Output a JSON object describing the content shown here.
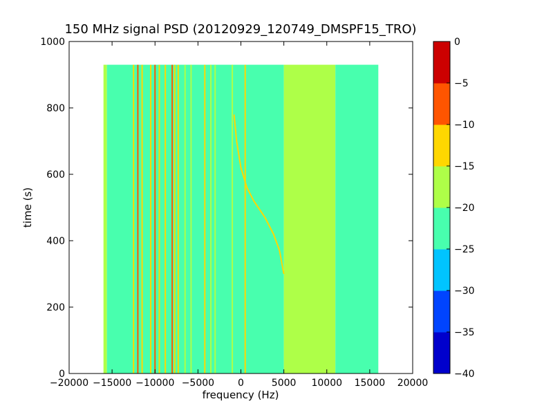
{
  "chart_data": {
    "type": "heatmap",
    "title": "150 MHz signal PSD (20120929_120749_DMSPF15_TRO)",
    "xlabel": "frequency (Hz)",
    "ylabel": "time (s)",
    "xlim": [
      -20000,
      20000
    ],
    "ylim": [
      0,
      1000
    ],
    "xticks": [
      -20000,
      -15000,
      -10000,
      -5000,
      0,
      5000,
      10000,
      15000,
      20000
    ],
    "yticks": [
      0,
      200,
      400,
      600,
      800,
      1000
    ],
    "data_extent": {
      "x": [
        -16000,
        16000
      ],
      "y": [
        0,
        930
      ]
    },
    "grid": false,
    "colorbar": {
      "levels": [
        -40,
        -35,
        -30,
        -25,
        -20,
        -15,
        -10,
        -5,
        0
      ],
      "tick_labels": [
        "−40",
        "−35",
        "−30",
        "−25",
        "−20",
        "−15",
        "−10",
        "−5",
        "0"
      ],
      "colors": [
        "#0000cc",
        "#0044ff",
        "#00c4ff",
        "#48ffae",
        "#aeff48",
        "#ffd700",
        "#ff5500",
        "#cc0000"
      ]
    },
    "regions": [
      {
        "x": [
          -16000,
          -15600
        ],
        "level": -17.5
      },
      {
        "x": [
          -15600,
          5000
        ],
        "level": -22.5
      },
      {
        "x": [
          5000,
          11000
        ],
        "level": -17.5
      },
      {
        "x": [
          11000,
          16000
        ],
        "level": -22.5
      }
    ],
    "vertical_lines": [
      {
        "x": -12500,
        "level": -12.5
      },
      {
        "x": -12000,
        "level": -7.5
      },
      {
        "x": -11500,
        "level": -12.5
      },
      {
        "x": -10500,
        "level": -12.5
      },
      {
        "x": -10000,
        "level": -7.5
      },
      {
        "x": -9500,
        "level": -12.5
      },
      {
        "x": -8800,
        "level": -12.5
      },
      {
        "x": -8000,
        "level": -7.5
      },
      {
        "x": -7700,
        "level": -12.5
      },
      {
        "x": -7300,
        "level": -12.5
      },
      {
        "x": -6500,
        "level": -17.5
      },
      {
        "x": -5800,
        "level": -17.5
      },
      {
        "x": -4200,
        "level": -12.5
      },
      {
        "x": -3500,
        "level": -17.5
      },
      {
        "x": -3000,
        "level": -17.5
      },
      {
        "x": -1000,
        "level": -17.5
      },
      {
        "x": 500,
        "level": -12.5
      }
    ],
    "drift_trace": {
      "level": -12.5,
      "points": [
        {
          "x": 5000,
          "y": 300
        },
        {
          "x": 4500,
          "y": 370
        },
        {
          "x": 3800,
          "y": 420
        },
        {
          "x": 2800,
          "y": 470
        },
        {
          "x": 1500,
          "y": 520
        },
        {
          "x": 700,
          "y": 560
        },
        {
          "x": 0,
          "y": 620
        },
        {
          "x": -500,
          "y": 700
        },
        {
          "x": -800,
          "y": 780
        }
      ]
    }
  }
}
